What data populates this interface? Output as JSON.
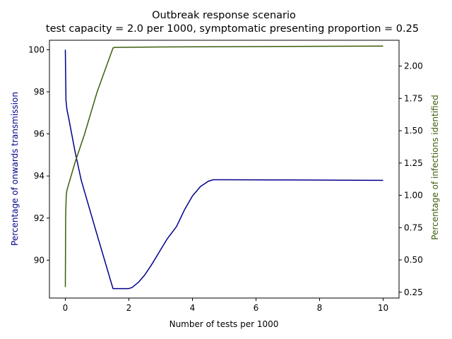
{
  "chart_data": {
    "type": "line",
    "title": "Outbreak response scenario",
    "subtitle": "test capacity = 2.0 per 1000, symptomatic presenting proportion = 0.25",
    "xlabel": "Number of tests per 1000",
    "ylabel_left": "Percentage of onwards transmission",
    "ylabel_right": "Percentage of infections identified",
    "xlim": [
      -0.5,
      10.5
    ],
    "ylim_left": [
      88.2,
      100.45
    ],
    "ylim_right": [
      0.205,
      2.2
    ],
    "x_ticks": [
      0,
      2,
      4,
      6,
      8,
      10
    ],
    "x_tick_labels": [
      "0",
      "2",
      "4",
      "6",
      "8",
      "10"
    ],
    "y_left_ticks": [
      90,
      92,
      94,
      96,
      98,
      100
    ],
    "y_left_tick_labels": [
      "90",
      "92",
      "94",
      "96",
      "98",
      "100"
    ],
    "y_right_ticks": [
      0.25,
      0.5,
      0.75,
      1.0,
      1.25,
      1.5,
      1.75,
      2.0
    ],
    "y_right_tick_labels": [
      "0.25",
      "0.50",
      "0.75",
      "1.00",
      "1.25",
      "1.50",
      "1.75",
      "2.00"
    ],
    "grid": false,
    "series": [
      {
        "axis": "left",
        "color": "#00008b",
        "x": [
          0,
          0.02,
          0.05,
          0.1,
          0.3,
          0.5,
          1.0,
          1.5,
          1.8,
          2.0,
          2.1,
          2.3,
          2.5,
          2.7,
          3.0,
          3.2,
          3.5,
          3.75,
          4.0,
          4.25,
          4.5,
          4.65,
          5.0,
          7.0,
          10.0
        ],
        "y": [
          100.0,
          97.6,
          97.15,
          96.8,
          95.2,
          93.8,
          91.2,
          88.65,
          88.65,
          88.65,
          88.7,
          88.95,
          89.3,
          89.75,
          90.5,
          91.0,
          91.6,
          92.4,
          93.05,
          93.5,
          93.75,
          93.82,
          93.82,
          93.81,
          93.79
        ]
      },
      {
        "axis": "right",
        "color": "#3a5f0b",
        "x": [
          0,
          0.01,
          0.03,
          0.05,
          0.3,
          0.6,
          1.0,
          1.5,
          1.55,
          3.0,
          5.0,
          7.0,
          10.0
        ],
        "y": [
          0.29,
          0.85,
          1.0,
          1.04,
          1.25,
          1.47,
          1.8,
          2.14,
          2.145,
          2.148,
          2.15,
          2.152,
          2.155
        ]
      }
    ]
  }
}
